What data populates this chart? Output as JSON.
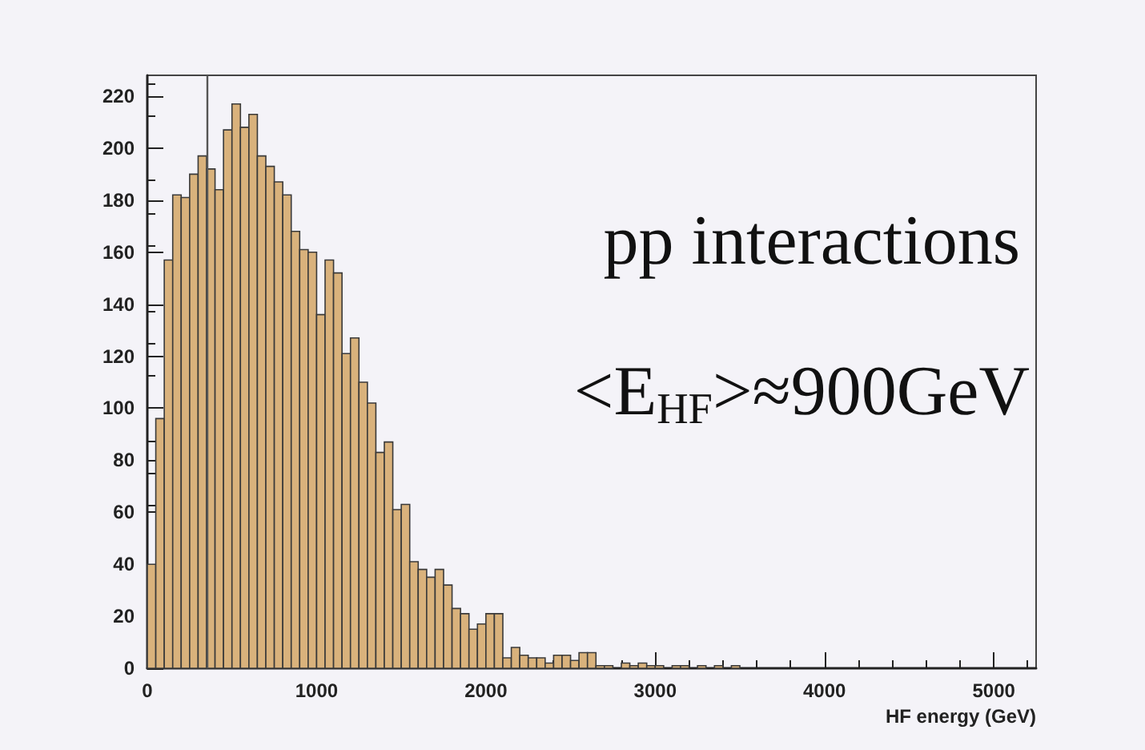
{
  "chart_data": {
    "type": "histogram",
    "xlabel": "HF energy (GeV)",
    "color": "#d9b27c",
    "bins": [
      0,
      50,
      100,
      150,
      200,
      250,
      300,
      350,
      400,
      450,
      500,
      550,
      600,
      650,
      700,
      750,
      800,
      850,
      900,
      950,
      1000,
      1050,
      1100,
      1150,
      1200,
      1250,
      1300,
      1350,
      1400,
      1450,
      1500,
      1550,
      1600,
      1650,
      1700,
      1750,
      1800,
      1850,
      1900,
      1950,
      2000,
      2050,
      2100,
      2150,
      2200,
      2250,
      2300,
      2350,
      2400,
      2450,
      2500,
      2550,
      2600,
      2650,
      2700,
      2750,
      2800,
      2850,
      2900,
      2950,
      3000,
      3050,
      3100,
      3150,
      3200,
      3250,
      3300,
      3350,
      3400,
      3450,
      3500
    ],
    "values": [
      40,
      96,
      157,
      182,
      181,
      190,
      197,
      192,
      184,
      207,
      217,
      208,
      213,
      197,
      193,
      187,
      182,
      168,
      161,
      160,
      136,
      157,
      152,
      121,
      127,
      110,
      102,
      83,
      87,
      61,
      63,
      41,
      38,
      35,
      38,
      32,
      23,
      21,
      15,
      17,
      21,
      21,
      4,
      8,
      5,
      4,
      4,
      2,
      5,
      5,
      3,
      6,
      6,
      1,
      1,
      0,
      2,
      1,
      2,
      1,
      1,
      0,
      1,
      1,
      0,
      1,
      0,
      1,
      0,
      1
    ],
    "xlim": [
      0,
      5250
    ],
    "xticks": [
      0,
      1000,
      2000,
      3000,
      4000,
      5000
    ],
    "ylim": [
      0,
      228
    ],
    "yticks": [
      0,
      20,
      40,
      60,
      80,
      100,
      120,
      140,
      160,
      180,
      200,
      220
    ],
    "ref_lines": [
      {
        "axis": "x",
        "value": 350,
        "color": "#555555"
      }
    ],
    "annotations": [
      "pp interactions",
      "<E$_{HF}$>≈900GeV"
    ]
  }
}
